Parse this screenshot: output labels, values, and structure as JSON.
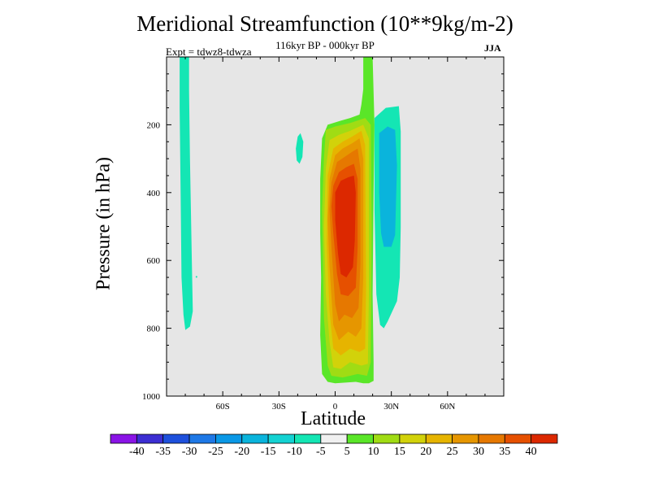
{
  "chart_data": {
    "type": "heatmap",
    "title": "Meridional Streamfunction (10**9kg/m-2)",
    "subtitle": "116kyr BP - 000kyr BP",
    "left_label": "Expt = tdwz8-tdwza",
    "right_label": "JJA",
    "xlabel": "Latitude",
    "ylabel": "Pressure (in hPa)",
    "xlim": [
      -90,
      90
    ],
    "ylim": [
      1000,
      0
    ],
    "x_ticks": [
      {
        "value": -60,
        "label": "60S"
      },
      {
        "value": -30,
        "label": "30S"
      },
      {
        "value": 0,
        "label": "0"
      },
      {
        "value": 30,
        "label": "30N"
      },
      {
        "value": 60,
        "label": "60N"
      }
    ],
    "y_ticks": [
      {
        "value": 200,
        "label": "200"
      },
      {
        "value": 400,
        "label": "400"
      },
      {
        "value": 600,
        "label": "600"
      },
      {
        "value": 800,
        "label": "800"
      },
      {
        "value": 1000,
        "label": "1000"
      }
    ],
    "colorbar": {
      "colors": [
        "#8a14e6",
        "#3c2ed2",
        "#1e50dc",
        "#1e78e6",
        "#0a98e6",
        "#0ab4dc",
        "#14d2d2",
        "#14e6b4",
        "#f0f0f0",
        "#5ae628",
        "#a0dc14",
        "#d2d20a",
        "#e6b400",
        "#e69600",
        "#e67800",
        "#e65000",
        "#dc2800"
      ],
      "labels": [
        "-40",
        "-35",
        "-30",
        "-25",
        "-20",
        "-15",
        "-10",
        "-5",
        "5",
        "10",
        "15",
        "20",
        "25",
        "30",
        "35",
        "40"
      ]
    },
    "regions": [
      {
        "value": -5,
        "color": "#14e6b4",
        "points": [
          [
            -83,
            0
          ],
          [
            -78,
            0
          ],
          [
            -78,
            100
          ],
          [
            -77.5,
            300
          ],
          [
            -76.5,
            600
          ],
          [
            -76,
            750
          ],
          [
            -77.5,
            795
          ],
          [
            -80,
            805
          ],
          [
            -81,
            760
          ],
          [
            -82,
            650
          ],
          [
            -82.5,
            400
          ],
          [
            -83,
            150
          ]
        ]
      },
      {
        "value": -5,
        "color": "#14e6b4",
        "points": [
          [
            -20,
            235
          ],
          [
            -18.5,
            225
          ],
          [
            -17,
            250
          ],
          [
            -17.5,
            295
          ],
          [
            -19,
            315
          ],
          [
            -20.5,
            305
          ],
          [
            -21,
            270
          ]
        ]
      },
      {
        "value": -5,
        "color": "#14e6b4",
        "points": [
          [
            21,
            180
          ],
          [
            27,
            150
          ],
          [
            34,
            145
          ],
          [
            35,
            220
          ],
          [
            35,
            500
          ],
          [
            34.5,
            650
          ],
          [
            33,
            720
          ],
          [
            28,
            780
          ],
          [
            26,
            800
          ],
          [
            24,
            790
          ],
          [
            22,
            700
          ],
          [
            21,
            450
          ]
        ]
      },
      {
        "value": -10,
        "color": "#0ab4dc",
        "points": [
          [
            23.5,
            225
          ],
          [
            28,
            205
          ],
          [
            32,
            215
          ],
          [
            33,
            320
          ],
          [
            32,
            525
          ],
          [
            30,
            560
          ],
          [
            26,
            560
          ],
          [
            24.5,
            520
          ],
          [
            23.5,
            400
          ]
        ]
      },
      {
        "value": 5,
        "color": "#5ae628",
        "points": [
          [
            15,
            0
          ],
          [
            20,
            0
          ],
          [
            21,
            200
          ],
          [
            20.5,
            400
          ],
          [
            20,
            700
          ],
          [
            20.5,
            900
          ],
          [
            20.5,
            955
          ],
          [
            18,
            962
          ],
          [
            15,
            962
          ],
          [
            11,
            958
          ],
          [
            0,
            962
          ],
          [
            -4,
            958
          ],
          [
            -7,
            935
          ],
          [
            -8,
            820
          ],
          [
            -7.5,
            650
          ],
          [
            -8,
            520
          ],
          [
            -8,
            360
          ],
          [
            -7,
            240
          ],
          [
            -4,
            200
          ],
          [
            3,
            188
          ],
          [
            8,
            180
          ],
          [
            13,
            170
          ],
          [
            14,
            140
          ],
          [
            15,
            95
          ]
        ]
      },
      {
        "value": 10,
        "color": "#a0dc14",
        "points": [
          [
            -6,
            300
          ],
          [
            -5,
            215
          ],
          [
            0,
            205
          ],
          [
            8,
            195
          ],
          [
            16,
            180
          ],
          [
            19,
            200
          ],
          [
            19.5,
            500
          ],
          [
            19,
            900
          ],
          [
            17,
            940
          ],
          [
            12,
            935
          ],
          [
            4,
            945
          ],
          [
            -2,
            940
          ],
          [
            -4,
            910
          ],
          [
            -6,
            770
          ],
          [
            -6.5,
            600
          ],
          [
            -7,
            450
          ]
        ]
      },
      {
        "value": 15,
        "color": "#d2d20a",
        "points": [
          [
            -5,
            330
          ],
          [
            -3,
            245
          ],
          [
            2,
            230
          ],
          [
            8,
            218
          ],
          [
            15,
            200
          ],
          [
            18,
            240
          ],
          [
            18,
            700
          ],
          [
            17.5,
            905
          ],
          [
            14,
            910
          ],
          [
            8,
            900
          ],
          [
            3,
            920
          ],
          [
            -1,
            915
          ],
          [
            -3,
            840
          ],
          [
            -5,
            700
          ],
          [
            -6,
            500
          ]
        ]
      },
      {
        "value": 20,
        "color": "#e6b400",
        "points": [
          [
            -4,
            350
          ],
          [
            -1,
            270
          ],
          [
            4,
            250
          ],
          [
            9,
            235
          ],
          [
            14,
            218
          ],
          [
            16,
            260
          ],
          [
            16.5,
            680
          ],
          [
            16,
            860
          ],
          [
            13,
            870
          ],
          [
            8,
            860
          ],
          [
            3,
            880
          ],
          [
            -1,
            860
          ],
          [
            -3,
            750
          ],
          [
            -4.5,
            550
          ]
        ]
      },
      {
        "value": 25,
        "color": "#e69600",
        "points": [
          [
            -3,
            360
          ],
          [
            0,
            290
          ],
          [
            4,
            270
          ],
          [
            9,
            255
          ],
          [
            13,
            240
          ],
          [
            15,
            300
          ],
          [
            15,
            650
          ],
          [
            14,
            800
          ],
          [
            11,
            825
          ],
          [
            7,
            810
          ],
          [
            2,
            835
          ],
          [
            -1,
            790
          ],
          [
            -3,
            620
          ],
          [
            -4,
            480
          ]
        ]
      },
      {
        "value": 30,
        "color": "#e67800",
        "points": [
          [
            -2,
            370
          ],
          [
            1,
            310
          ],
          [
            5,
            295
          ],
          [
            9,
            280
          ],
          [
            12,
            270
          ],
          [
            13.5,
            330
          ],
          [
            13.5,
            610
          ],
          [
            12.5,
            740
          ],
          [
            9,
            770
          ],
          [
            5,
            760
          ],
          [
            2,
            780
          ],
          [
            0,
            730
          ],
          [
            -2,
            560
          ],
          [
            -3,
            450
          ]
        ]
      },
      {
        "value": 35,
        "color": "#e65000",
        "points": [
          [
            -1,
            380
          ],
          [
            2,
            340
          ],
          [
            6,
            325
          ],
          [
            10,
            315
          ],
          [
            12,
            360
          ],
          [
            12,
            560
          ],
          [
            11,
            680
          ],
          [
            7,
            705
          ],
          [
            3,
            700
          ],
          [
            1,
            640
          ],
          [
            -1,
            520
          ],
          [
            -2,
            440
          ]
        ]
      },
      {
        "value": 40,
        "color": "#dc2800",
        "points": [
          [
            0,
            400
          ],
          [
            3,
            365
          ],
          [
            7,
            355
          ],
          [
            10,
            350
          ],
          [
            11,
            400
          ],
          [
            10.5,
            540
          ],
          [
            9.5,
            620
          ],
          [
            6,
            650
          ],
          [
            3,
            640
          ],
          [
            1.5,
            580
          ],
          [
            0,
            480
          ]
        ]
      },
      {
        "value": -5,
        "color": "#14e6b4",
        "points": [
          [
            -74,
            645
          ],
          [
            -73.5,
            648
          ],
          [
            -74,
            652
          ],
          [
            -74.5,
            648
          ]
        ]
      }
    ]
  }
}
